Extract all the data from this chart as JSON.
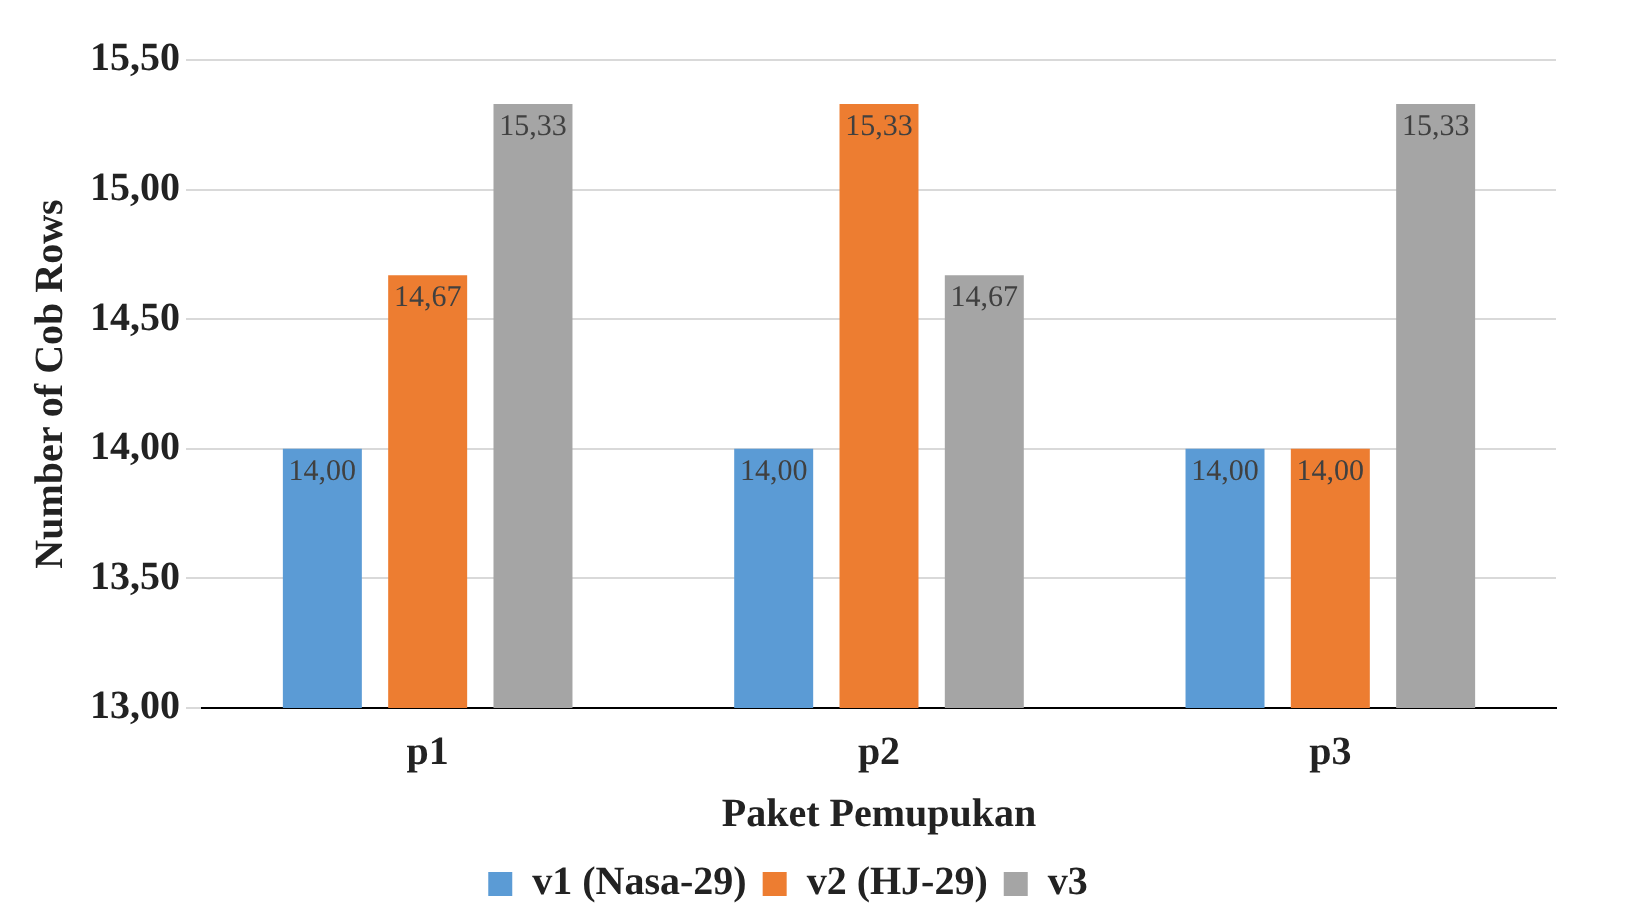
{
  "chart_data": {
    "type": "bar",
    "xlabel": "Paket Pemupukan",
    "ylabel": "Number of Cob Rows",
    "categories": [
      "p1",
      "p2",
      "p3"
    ],
    "series": [
      {
        "name": "v1 (Nasa-29)",
        "color": "#5b9bd5",
        "values": [
          14.0,
          14.0,
          14.0
        ],
        "value_labels": [
          "14,00",
          "14,00",
          "14,00"
        ]
      },
      {
        "name": "v2 (HJ-29)",
        "color": "#ed7d31",
        "values": [
          14.67,
          15.33,
          14.0
        ],
        "value_labels": [
          "14,67",
          "15,33",
          "14,00"
        ]
      },
      {
        "name": "v3",
        "color": "#a5a5a5",
        "values": [
          15.33,
          14.67,
          15.33
        ],
        "value_labels": [
          "15,33",
          "14,67",
          "15,33"
        ]
      }
    ],
    "ylim": [
      13,
      15.5
    ],
    "yticks": [
      {
        "value": 13,
        "label": "13,00"
      },
      {
        "value": 13.5,
        "label": "13,50"
      },
      {
        "value": 14,
        "label": "14,00"
      },
      {
        "value": 14.5,
        "label": "14,50"
      },
      {
        "value": 15,
        "label": "15,00"
      },
      {
        "value": 15.5,
        "label": "15,50"
      }
    ],
    "grid": "y",
    "legend": "bottom"
  }
}
